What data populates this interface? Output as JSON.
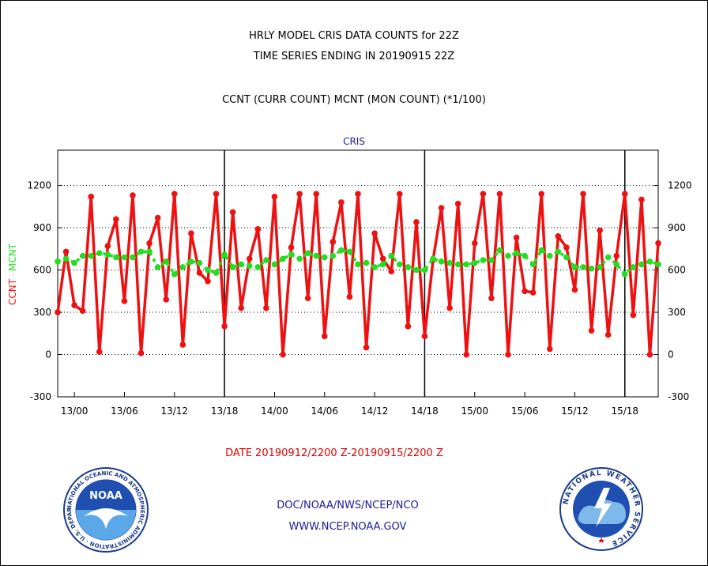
{
  "header": {
    "title_line1": "HRLY MODEL CRIS DATA COUNTS for 22Z",
    "title_line2": "TIME SERIES ENDING IN 20190915 22Z",
    "title_line3": "CCNT (CURR COUNT) MCNT (MON COUNT) (*1/100)"
  },
  "footer": {
    "date_range": "DATE 20190912/2200 Z-20190915/2200 Z",
    "credit_org": "DOC/NOAA/NWS/NCEP/NCO",
    "credit_url": "WWW.NCEP.NOAA.GOV"
  },
  "logos": {
    "noaa": {
      "text": "NOAA",
      "ring_text": "NATIONAL OCEANIC AND ATMOSPHERIC ADMINISTRATION · U.S. DEPARTMENT OF COMMERCE"
    },
    "nws": {
      "ring_text": "NATIONAL WEATHER SERVICE"
    }
  },
  "colors": {
    "ccnt": "#ee1111",
    "mcnt": "#22dd22",
    "subtitle": "#1a1aa0",
    "axis": "#000000"
  },
  "chart_data": {
    "type": "line",
    "title": "CRIS",
    "ylabel_left": [
      "CCNT",
      "MCNT"
    ],
    "ylim": [
      -300,
      1450
    ],
    "yticks": [
      -300,
      0,
      300,
      600,
      900,
      1200
    ],
    "grid": true,
    "x_unit": "hours from 2019-09-12 22Z",
    "xlim": [
      0,
      72
    ],
    "x_tick_labels": [
      {
        "x": 2,
        "label": "13/00"
      },
      {
        "x": 8,
        "label": "13/06"
      },
      {
        "x": 14,
        "label": "13/12"
      },
      {
        "x": 20,
        "label": "13/18"
      },
      {
        "x": 26,
        "label": "14/00"
      },
      {
        "x": 32,
        "label": "14/06"
      },
      {
        "x": 38,
        "label": "14/12"
      },
      {
        "x": 44,
        "label": "14/18"
      },
      {
        "x": 50,
        "label": "15/00"
      },
      {
        "x": 56,
        "label": "15/06"
      },
      {
        "x": 62,
        "label": "15/12"
      },
      {
        "x": 68,
        "label": "15/18"
      }
    ],
    "day_separators": [
      20,
      44,
      68
    ],
    "series": [
      {
        "name": "CCNT",
        "values": [
          300,
          730,
          350,
          310,
          1120,
          20,
          770,
          960,
          380,
          1130,
          10,
          790,
          970,
          390,
          1140,
          70,
          860,
          580,
          520,
          1140,
          200,
          1010,
          330,
          680,
          890,
          330,
          1120,
          0,
          760,
          1140,
          400,
          1140,
          130,
          800,
          1080,
          410,
          1140,
          50,
          860,
          680,
          590,
          1140,
          200,
          940,
          130,
          670,
          1040,
          330,
          1070,
          0,
          790,
          1140,
          400,
          1140,
          0,
          830,
          450,
          440,
          1140,
          40,
          840,
          760,
          460,
          1140,
          170,
          880,
          140,
          700,
          1140,
          280,
          1100,
          0,
          790
        ]
      },
      {
        "name": "MCNT",
        "values": [
          660,
          680,
          650,
          700,
          700,
          720,
          710,
          690,
          690,
          690,
          730,
          730,
          620,
          660,
          570,
          620,
          660,
          650,
          600,
          580,
          710,
          620,
          640,
          630,
          620,
          670,
          640,
          680,
          710,
          680,
          720,
          700,
          690,
          700,
          740,
          730,
          640,
          650,
          620,
          640,
          700,
          640,
          620,
          600,
          600,
          680,
          660,
          650,
          640,
          640,
          650,
          670,
          670,
          740,
          700,
          720,
          700,
          640,
          740,
          700,
          730,
          690,
          620,
          620,
          610,
          620,
          690,
          640,
          570,
          620,
          640,
          660,
          640
        ]
      }
    ]
  }
}
